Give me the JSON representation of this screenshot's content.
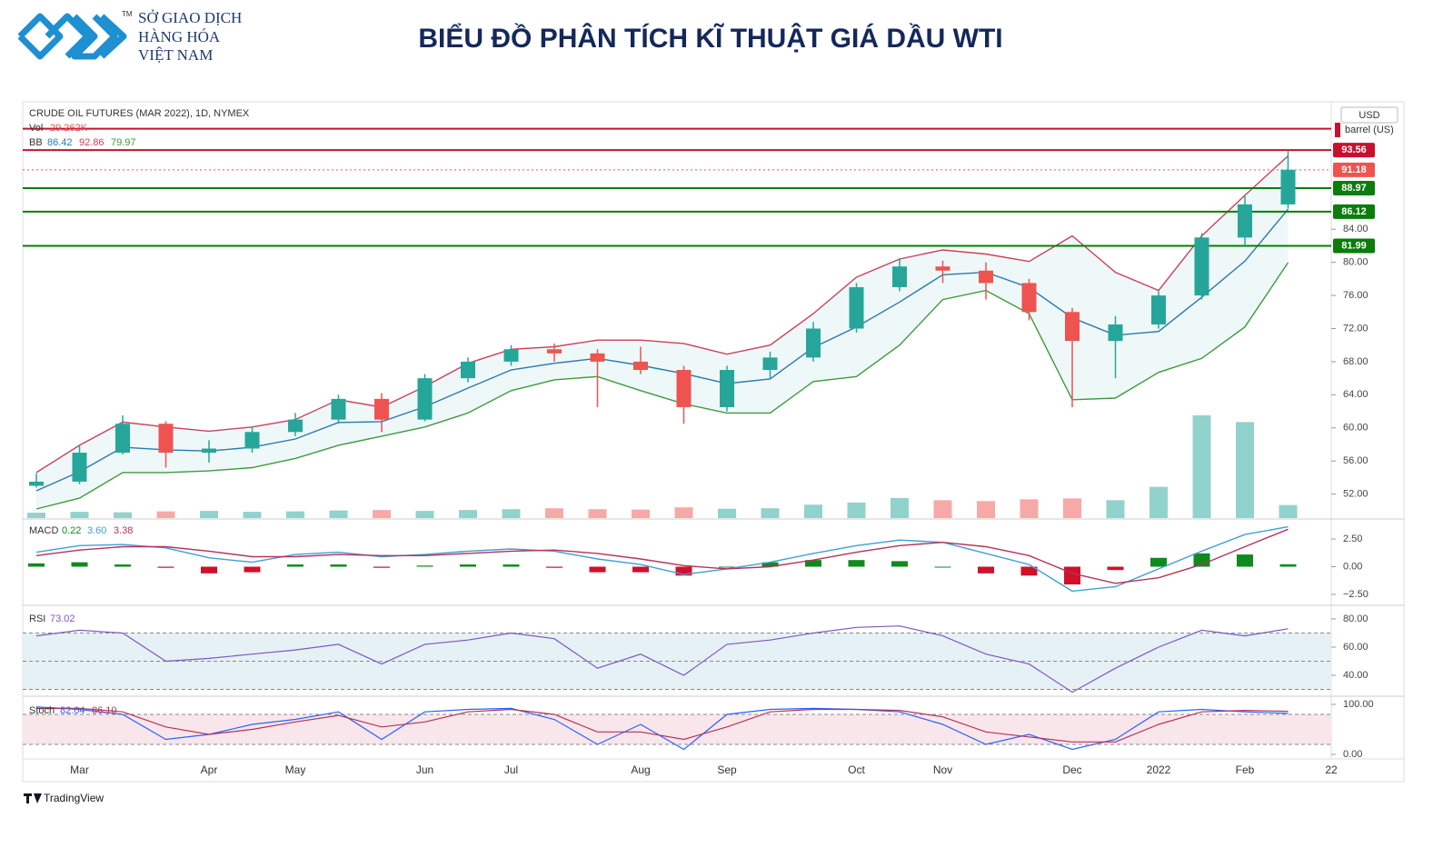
{
  "header": {
    "logo_lines": [
      "SỞ GIAO DỊCH",
      "HÀNG HÓA",
      "VIỆT NAM"
    ],
    "logo_mark": "TM",
    "title": "BIỂU ĐỒ PHÂN TÍCH KĨ THUẬT GIÁ DẦU WTI"
  },
  "footer": {
    "brand": "TradingView"
  },
  "axis_units": {
    "currency": "USD",
    "unit": "barrel (US)"
  },
  "chart_data": [
    {
      "type": "candlestick",
      "title": "CRUDE OIL FUTURES (MAR 2022), 1D, NYMEX",
      "categories": [
        null,
        "Mar",
        null,
        null,
        "Apr",
        null,
        "May",
        null,
        null,
        "Jun",
        null,
        "Jul",
        null,
        null,
        "Aug",
        null,
        "Sep",
        null,
        null,
        "Oct",
        null,
        "Nov",
        null,
        null,
        "Dec",
        null,
        "2022",
        null,
        "Feb",
        null,
        "22"
      ],
      "open": [
        53,
        53.5,
        57,
        60.5,
        57,
        57.5,
        59.5,
        61,
        63.5,
        61,
        66,
        68,
        69.5,
        69,
        68,
        67,
        62.5,
        67,
        68.5,
        72,
        77,
        79.5,
        79,
        77.5,
        74,
        70.5,
        72.5,
        76,
        83,
        87,
        null
      ],
      "high": [
        54.5,
        57.8,
        61.5,
        60.8,
        58.5,
        60.2,
        61.8,
        64,
        64.2,
        66.5,
        68.5,
        70,
        70.2,
        69.5,
        69.8,
        67.5,
        67.5,
        69.2,
        72.8,
        77.5,
        80.5,
        80.2,
        80,
        78,
        74.5,
        73.5,
        76.5,
        83.5,
        88,
        93.5,
        null
      ],
      "low": [
        52.8,
        53.2,
        56.8,
        55.2,
        55.8,
        57,
        59,
        60.5,
        59.5,
        60.8,
        65.5,
        67.5,
        68,
        62.5,
        66.5,
        60.5,
        62,
        66,
        68,
        71.5,
        76.5,
        77.5,
        75.5,
        73,
        62.5,
        66,
        72,
        75.5,
        82,
        86.5,
        null
      ],
      "close": [
        53.5,
        57,
        60.5,
        57,
        57.5,
        59.5,
        61,
        63.5,
        61,
        66,
        68,
        69.5,
        69,
        68,
        67,
        62.5,
        67,
        68.5,
        72,
        77,
        79.5,
        79,
        77.5,
        74,
        70.5,
        72.5,
        76,
        83,
        87,
        91.18,
        null
      ],
      "up_color": "#26a69a",
      "down_color": "#ef5350",
      "bollinger": {
        "name": "BB",
        "middle": [
          52.4,
          54.7,
          57.65,
          57.35,
          57.2,
          57.65,
          58.65,
          60.65,
          60.75,
          62.55,
          64.8,
          67,
          67.8,
          68.4,
          67.55,
          66.55,
          65.35,
          65.9,
          69.7,
          72.2,
          75.2,
          78.5,
          78.8,
          76.95,
          73.3,
          71.2,
          71.65,
          75.8,
          80.15,
          86.42,
          null
        ],
        "upper": [
          54.6,
          57.9,
          60.7,
          60.1,
          59.6,
          60.1,
          61,
          63.4,
          62.5,
          65,
          67.8,
          69.5,
          69.8,
          70.6,
          70.6,
          70.2,
          68.9,
          70,
          73.8,
          78.2,
          80.4,
          81.5,
          81,
          80.1,
          83.2,
          78.8,
          76.6,
          83.2,
          88.1,
          92.86,
          null
        ],
        "lower": [
          50.2,
          51.5,
          54.6,
          54.6,
          54.8,
          55.2,
          56.3,
          57.9,
          59,
          60.1,
          61.8,
          64.5,
          65.8,
          66.2,
          64.5,
          62.9,
          61.8,
          61.8,
          65.6,
          66.2,
          70,
          75.5,
          76.6,
          73.8,
          63.4,
          63.6,
          66.7,
          68.4,
          72.2,
          79.97,
          null
        ],
        "middle_color": "#2a7ab0",
        "upper_color": "#c8435a",
        "lower_color": "#3f9a3f"
      },
      "volume": {
        "name": "Vol",
        "last_label": "29.262K",
        "values": [
          12000,
          14000,
          13000,
          15000,
          16000,
          14000,
          15000,
          17000,
          18000,
          16000,
          18000,
          20000,
          22000,
          20000,
          19000,
          24000,
          21000,
          22000,
          30000,
          35000,
          45000,
          40000,
          38000,
          42000,
          44000,
          40000,
          70000,
          230000,
          215000,
          29262,
          null
        ]
      },
      "levels": [
        {
          "value": 96.15,
          "color": "#c8102e",
          "labeled": false
        },
        {
          "value": 93.56,
          "color": "#c8102e",
          "labeled": true
        },
        {
          "value": 91.18,
          "color": "#ef5350",
          "labeled": true,
          "style": "dotted"
        },
        {
          "value": 88.97,
          "color": "#0a7d0a",
          "labeled": true
        },
        {
          "value": 86.12,
          "color": "#0a7d0a",
          "labeled": true
        },
        {
          "value": 81.99,
          "color": "#0a7d0a",
          "labeled": true
        }
      ],
      "ylim": [
        49.1,
        99.4
      ],
      "yticks": [
        {
          "value": 52,
          "label": "52.00"
        },
        {
          "value": 56,
          "label": "56.00"
        },
        {
          "value": 60,
          "label": "60.00"
        },
        {
          "value": 64,
          "label": "64.00"
        },
        {
          "value": 68,
          "label": "68.00"
        },
        {
          "value": 72,
          "label": "72.00"
        },
        {
          "value": 76,
          "label": "76.00"
        },
        {
          "value": 80,
          "label": "80.00"
        },
        {
          "value": 84,
          "label": "84.00"
        }
      ]
    },
    {
      "type": "macd",
      "title": "MACD",
      "histogram": {
        "values": [
          0.3,
          0.4,
          0.2,
          -0.1,
          -0.6,
          -0.5,
          0.2,
          0.2,
          -0.1,
          0.1,
          0.2,
          0.2,
          -0.1,
          -0.5,
          -0.5,
          -0.8,
          0.0,
          0.4,
          0.6,
          0.6,
          0.5,
          0.0,
          -0.6,
          -0.8,
          -1.6,
          -0.3,
          0.8,
          1.2,
          1.1,
          0.22,
          null
        ],
        "up_color": "#0f8a1f",
        "down_color": "#d1102a"
      },
      "series": [
        {
          "name": "MACD",
          "color": "#3f9fd8",
          "last_label": "3.60",
          "values": [
            1.3,
            1.9,
            2.0,
            1.7,
            0.8,
            0.4,
            1.1,
            1.3,
            0.9,
            1.1,
            1.4,
            1.6,
            1.4,
            0.7,
            0.2,
            -0.7,
            -0.2,
            0.4,
            1.2,
            1.9,
            2.4,
            2.2,
            1.2,
            0.2,
            -2.2,
            -1.8,
            -0.2,
            1.4,
            2.9,
            3.6,
            null
          ]
        },
        {
          "name": "Signal",
          "color": "#b5335a",
          "last_label": "3.38",
          "values": [
            1.0,
            1.5,
            1.8,
            1.8,
            1.4,
            0.9,
            0.9,
            1.1,
            1.0,
            1.0,
            1.2,
            1.4,
            1.5,
            1.2,
            0.7,
            0.1,
            -0.2,
            0.0,
            0.6,
            1.3,
            1.9,
            2.2,
            1.8,
            1.0,
            -0.6,
            -1.5,
            -1.0,
            0.2,
            1.8,
            3.38,
            null
          ]
        }
      ],
      "ylim": [
        -3.4,
        4.22
      ],
      "yticks": [
        {
          "value": 2.5,
          "label": "2.50"
        },
        {
          "value": 0,
          "label": "0.00"
        },
        {
          "value": -2.5,
          "label": "−2.50"
        }
      ]
    },
    {
      "type": "line",
      "title": "RSI",
      "band_color": "#e6f1f5",
      "series": [
        {
          "name": "RSI",
          "color": "#7e57c2",
          "values": [
            68,
            72,
            70,
            50,
            52,
            55,
            58,
            62,
            48,
            62,
            65,
            70,
            66,
            45,
            55,
            40,
            62,
            65,
            70,
            74,
            75,
            68,
            55,
            48,
            28,
            45,
            60,
            72,
            68,
            73.02,
            null
          ]
        }
      ],
      "levels": [
        70,
        50,
        30
      ],
      "ylim": [
        25.8,
        89
      ],
      "yticks": [
        {
          "value": 80,
          "label": "80.00"
        },
        {
          "value": 60,
          "label": "60.00"
        },
        {
          "value": 40,
          "label": "40.00"
        }
      ]
    },
    {
      "type": "line",
      "title": "Stoch",
      "band_color": "#f9e6ea",
      "series": [
        {
          "name": "%K",
          "color": "#2962ff",
          "last_label": "82.04",
          "values": [
            95,
            90,
            80,
            30,
            40,
            60,
            70,
            85,
            30,
            85,
            90,
            92,
            70,
            20,
            60,
            10,
            80,
            90,
            92,
            90,
            85,
            60,
            20,
            40,
            10,
            30,
            85,
            90,
            85,
            82.04,
            null
          ]
        },
        {
          "name": "%D",
          "color": "#b5335a",
          "last_label": "86.10",
          "values": [
            92,
            92,
            85,
            55,
            40,
            50,
            65,
            78,
            55,
            65,
            85,
            90,
            80,
            45,
            45,
            30,
            55,
            85,
            90,
            90,
            88,
            75,
            45,
            35,
            25,
            25,
            60,
            85,
            88,
            86.1,
            null
          ]
        }
      ],
      "levels": [
        80,
        20
      ],
      "ylim": [
        -9,
        114.5
      ],
      "yticks": [
        {
          "value": 100,
          "label": "100.00"
        },
        {
          "value": 0,
          "label": "0.00"
        }
      ]
    }
  ]
}
